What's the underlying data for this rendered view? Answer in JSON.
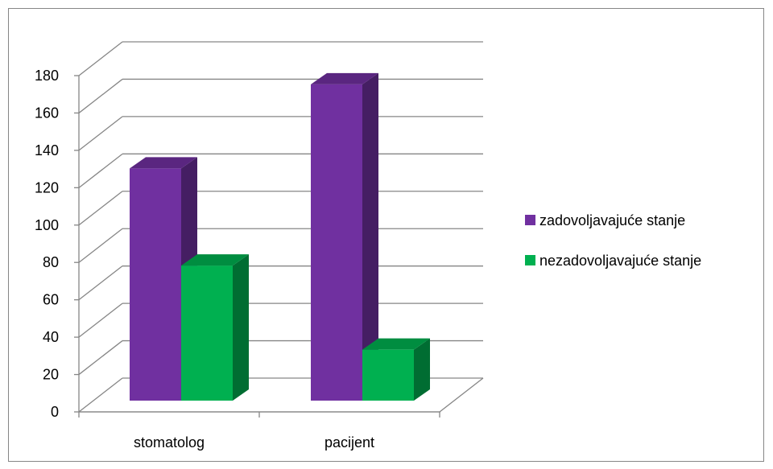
{
  "chart_data": {
    "type": "bar",
    "categories": [
      "stomatolog",
      "pacijent"
    ],
    "series": [
      {
        "name": "zadovoljavajuće stanje",
        "values": [
          126,
          171
        ],
        "color": "#7030A0"
      },
      {
        "name": "nezadovoljavajuće stanje",
        "values": [
          74,
          29
        ],
        "color": "#00B050"
      }
    ],
    "ylim": [
      0,
      180
    ],
    "yticks": [
      0,
      20,
      40,
      60,
      80,
      100,
      120,
      140,
      160,
      180
    ],
    "grid": true,
    "legend_position": "right",
    "title": "",
    "xlabel": "",
    "ylabel": ""
  }
}
